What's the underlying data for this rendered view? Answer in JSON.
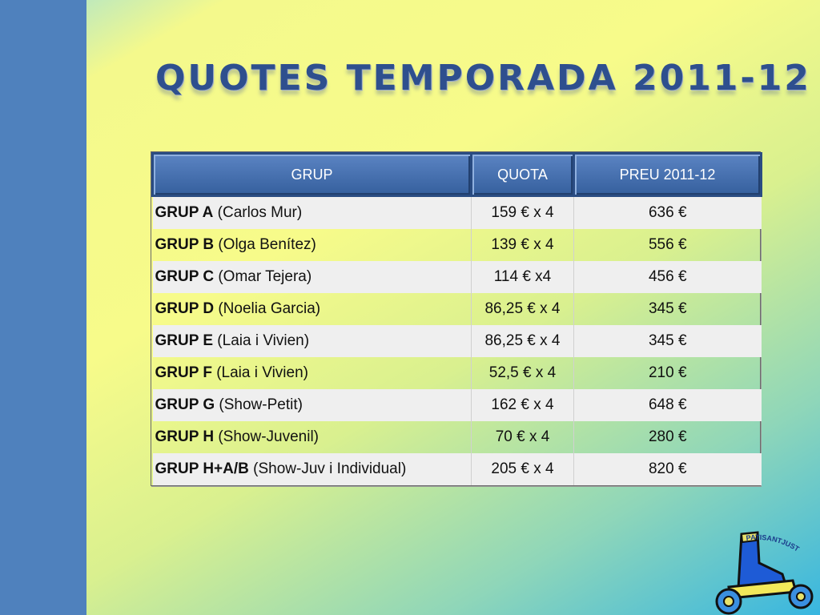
{
  "slide": {
    "title": "QUOTES TEMPORADA 2011-12",
    "colors": {
      "sidebar": "#4f81bd",
      "title": "#2e4f8e",
      "header": "#3d67a8"
    }
  },
  "table": {
    "headers": [
      "GRUP",
      "QUOTA",
      "PREU 2011-12"
    ],
    "rows": [
      {
        "group": "GRUP A",
        "coach": "(Carlos Mur)",
        "quota": "159 € x 4",
        "preu": "636 €"
      },
      {
        "group": "GRUP B",
        "coach": "(Olga Benítez)",
        "quota": "139 € x 4",
        "preu": "556 €"
      },
      {
        "group": "GRUP C",
        "coach": "(Omar Tejera)",
        "quota": "114 € x4",
        "preu": "456 €"
      },
      {
        "group": "GRUP D",
        "coach": "(Noelia Garcia)",
        "quota": "86,25 € x 4",
        "preu": "345 €"
      },
      {
        "group": "GRUP E",
        "coach": "(Laia  i Vivien)",
        "quota": "86,25 € x 4",
        "preu": "345 €"
      },
      {
        "group": "GRUP F",
        "coach": "(Laia i Vivien)",
        "quota": "52,5 € x 4",
        "preu": "210 €"
      },
      {
        "group": "GRUP G",
        "coach": "(Show-Petit)",
        "quota": "162 € x 4",
        "preu": "648 €"
      },
      {
        "group": "GRUP H",
        "coach": " (Show-Juvenil)",
        "quota": "70 € x 4",
        "preu": "280 €"
      },
      {
        "group": "GRUP H+A/B",
        "coach": "(Show-Juv i Individual)",
        "quota": "205 € x 4",
        "preu": "820 €"
      }
    ]
  },
  "logo": {
    "text": "PATISANTJUST",
    "icon": "roller-skate-icon"
  }
}
